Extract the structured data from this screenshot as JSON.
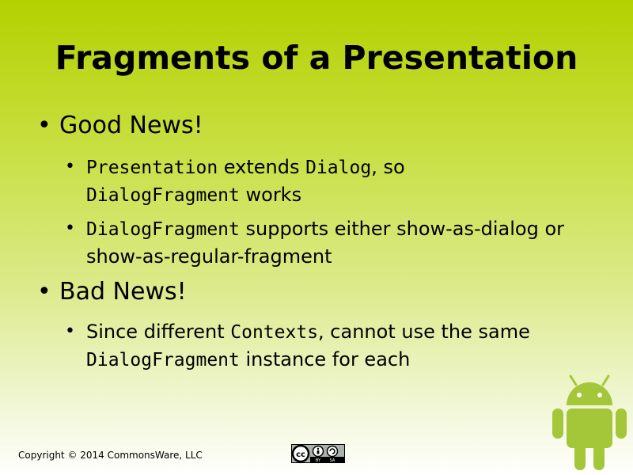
{
  "slide": {
    "title": "Fragments of a Presentation",
    "sections": [
      {
        "heading": "Good News!",
        "items": [
          {
            "line1_code1": "Presentation",
            "line1_text1": " extends ",
            "line1_code2": "Dialog",
            "line1_text2": ", so",
            "line2_code": "DialogFragment",
            "line2_text": " works"
          },
          {
            "line1_code": "DialogFragment",
            "line1_text": " supports either show-as-dialog or",
            "line2_text": "show-as-regular-fragment"
          }
        ]
      },
      {
        "heading": "Bad News!",
        "items": [
          {
            "line1_text1": "Since different ",
            "line1_code": "Contexts",
            "line1_text2": ", cannot use the same",
            "line2_code": "DialogFragment",
            "line2_text": " instance for each"
          }
        ]
      }
    ]
  },
  "footer": {
    "copyright": "Copyright © 2014 CommonsWare, LLC",
    "license_badge": {
      "label": "cc",
      "by": "BY",
      "sa": "SA"
    }
  },
  "colors": {
    "background_top": "#b3d100",
    "android_green": "#a4c639"
  },
  "icons": {
    "bullet": "•",
    "mascot": "android-robot-icon",
    "license": "creative-commons-by-sa-icon"
  }
}
